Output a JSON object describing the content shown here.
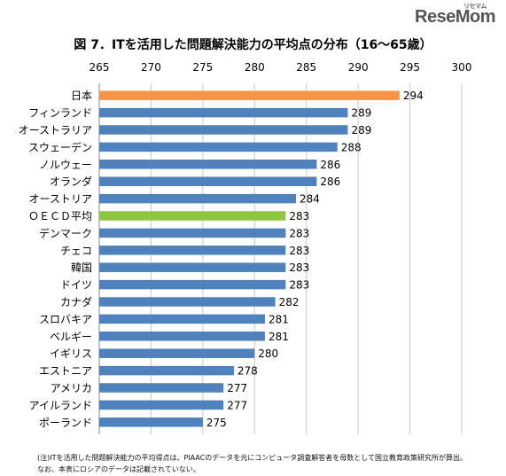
{
  "logo": {
    "text": "ReseMom",
    "mark": "リセマム"
  },
  "chart_data": {
    "type": "bar",
    "orientation": "horizontal",
    "title": "図 7．ITを活用した問題解決能力の平均点の分布（16〜65歳）",
    "xlim": [
      265,
      300
    ],
    "x_ticks": [
      "265",
      "270",
      "275",
      "280",
      "285",
      "290",
      "295",
      "300"
    ],
    "categories": [
      "日本",
      "フィンランド",
      "オーストラリア",
      "スウェーデン",
      "ノルウェー",
      "オランダ",
      "オーストリア",
      "ＯＥＣＤ平均",
      "デンマーク",
      "チェコ",
      "韓国",
      "ドイツ",
      "カナダ",
      "スロバキア",
      "ベルギー",
      "イギリス",
      "エストニア",
      "アメリカ",
      "アイルランド",
      "ポーランド"
    ],
    "values": [
      294,
      289,
      289,
      288,
      286,
      286,
      284,
      283,
      283,
      283,
      283,
      283,
      282,
      281,
      281,
      280,
      278,
      277,
      277,
      275
    ],
    "value_labels": [
      "294",
      "289",
      "289",
      "288",
      "286",
      "286",
      "284",
      "283",
      "283",
      "283",
      "283",
      "283",
      "282",
      "281",
      "281",
      "280",
      "278",
      "277",
      "277",
      "275"
    ],
    "colors": {
      "default": "#4F81BD",
      "highlight_japan": "#F79646",
      "highlight_oecd": "#8DC63F"
    },
    "grid": true
  },
  "notes": [
    "(注)ITを活用した問題解決能力の平均得点は、PIAACのデータを元にコンピュータ調査解答者を母数として国立教育政策研究所が算出。",
    "なお、本表にロシアのデータは記載されていない。"
  ]
}
